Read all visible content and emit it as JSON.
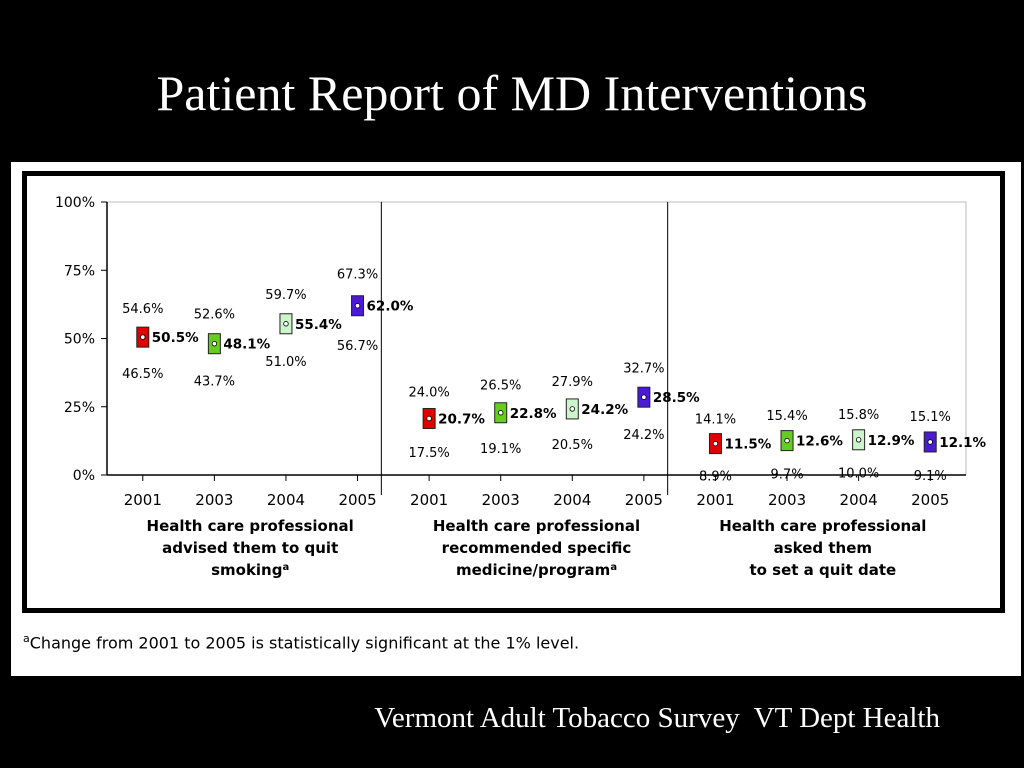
{
  "slide": {
    "title": "Patient Report of MD Interventions",
    "source": "Vermont Adult Tobacco Survey  VT Dept Health",
    "footnote_marker": "a",
    "footnote_text": "Change from 2001 to 2005 is statistically significant at the 1% level."
  },
  "chart_data": {
    "type": "scatter",
    "title": "",
    "xlabel": "",
    "ylabel": "",
    "ylim": [
      0,
      100
    ],
    "y_ticks": [
      "0%",
      "25%",
      "50%",
      "75%",
      "100%"
    ],
    "grid": false,
    "colors": {
      "2001": "#e00000",
      "2003": "#66cc22",
      "2004": "#ccf5cc",
      "2005": "#4a1ad6"
    },
    "groups": [
      {
        "label_lines": [
          "Health care professional",
          "advised them to quit",
          "smoking"
        ],
        "label_sup": "a",
        "years": [
          "2001",
          "2003",
          "2004",
          "2005"
        ],
        "estimates": [
          50.5,
          48.1,
          55.4,
          62.0
        ],
        "estimate_labels": [
          "50.5%",
          "48.1%",
          "55.4%",
          "62.0%"
        ],
        "lower": [
          46.5,
          43.7,
          51.0,
          56.7
        ],
        "lower_labels": [
          "46.5%",
          "43.7%",
          "51.0%",
          "56.7%"
        ],
        "upper": [
          54.6,
          52.6,
          59.7,
          67.3
        ],
        "upper_labels": [
          "54.6%",
          "52.6%",
          "59.7%",
          "67.3%"
        ]
      },
      {
        "label_lines": [
          "Health care professional",
          "recommended specific",
          "medicine/program"
        ],
        "label_sup": "a",
        "years": [
          "2001",
          "2003",
          "2004",
          "2005"
        ],
        "estimates": [
          20.7,
          22.8,
          24.2,
          28.5
        ],
        "estimate_labels": [
          "20.7%",
          "22.8%",
          "24.2%",
          "28.5%"
        ],
        "lower": [
          17.5,
          19.1,
          20.5,
          24.2
        ],
        "lower_labels": [
          "17.5%",
          "19.1%",
          "20.5%",
          "24.2%"
        ],
        "upper": [
          24.0,
          26.5,
          27.9,
          32.7
        ],
        "upper_labels": [
          "24.0%",
          "26.5%",
          "27.9%",
          "32.7%"
        ]
      },
      {
        "label_lines": [
          "Health care professional",
          "asked them",
          "to set a quit date"
        ],
        "label_sup": "",
        "years": [
          "2001",
          "2003",
          "2004",
          "2005"
        ],
        "estimates": [
          11.5,
          12.6,
          12.9,
          12.1
        ],
        "estimate_labels": [
          "11.5%",
          "12.6%",
          "12.9%",
          "12.1%"
        ],
        "lower": [
          8.9,
          9.7,
          10.0,
          9.1
        ],
        "lower_labels": [
          "8.9%",
          "9.7%",
          "10.0%",
          "9.1%"
        ],
        "upper": [
          14.1,
          15.4,
          15.8,
          15.1
        ],
        "upper_labels": [
          "14.1%",
          "15.4%",
          "15.8%",
          "15.1%"
        ]
      }
    ]
  }
}
